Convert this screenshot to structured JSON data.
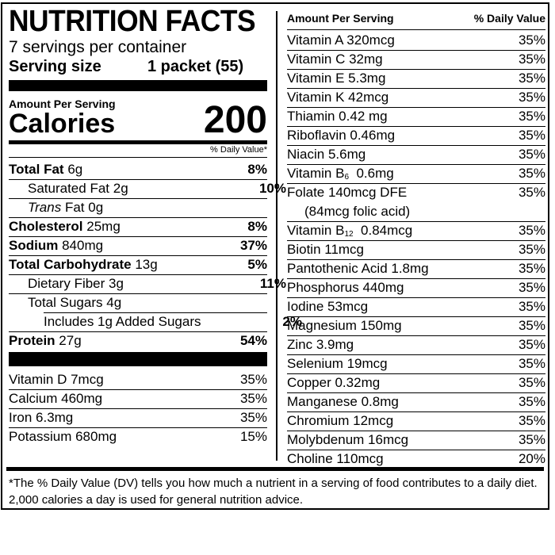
{
  "header": {
    "title": "NUTRITION FACTS",
    "servings": "7 servings per container",
    "serving_size_label": "Serving size",
    "serving_size_value": "1 packet (55)"
  },
  "calories": {
    "amount_per_serving": "Amount Per Serving",
    "label": "Calories",
    "value": "200",
    "dv_header": "% Daily Value*"
  },
  "nutrients": [
    {
      "name": "Total Fat",
      "amount": "6g",
      "pct": "8%"
    },
    {
      "name": "Saturated Fat",
      "amount": "2g",
      "pct": "10%"
    },
    {
      "name_italic": "Trans",
      "name": "Fat",
      "amount": "0g",
      "pct": ""
    },
    {
      "name": "Cholesterol",
      "amount": "25mg",
      "pct": "8%"
    },
    {
      "name": "Sodium",
      "amount": "840mg",
      "pct": "37%"
    },
    {
      "name": "Total Carbohydrate",
      "amount": "13g",
      "pct": "5%"
    },
    {
      "name": "Dietary Fiber",
      "amount": "3g",
      "pct": "11%"
    },
    {
      "name": "Total Sugars",
      "amount": "4g",
      "pct": ""
    },
    {
      "name": "Includes 1g Added Sugars",
      "amount": "",
      "pct": "2%"
    },
    {
      "name": "Protein",
      "amount": "27g",
      "pct": "54%"
    }
  ],
  "minerals_left": [
    {
      "label": "Vitamin D 7mcg",
      "pct": "35%"
    },
    {
      "label": "Calcium 460mg",
      "pct": "35%"
    },
    {
      "label": "Iron 6.3mg",
      "pct": "35%"
    },
    {
      "label": "Potassium 680mg",
      "pct": "15%"
    }
  ],
  "right_header": {
    "amount_per_serving": "Amount Per Serving",
    "dv": "% Daily Value"
  },
  "vitamins_right": [
    {
      "label": "Vitamin A  320mcg",
      "pct": "35%"
    },
    {
      "label": "Vitamin C  32mg",
      "pct": "35%"
    },
    {
      "label": "Vitamin E  5.3mg",
      "pct": "35%"
    },
    {
      "label": "Vitamin K  42mcg",
      "pct": "35%"
    },
    {
      "label": "Thiamin  0.42 mg",
      "pct": "35%"
    },
    {
      "label": "Riboflavin  0.46mg",
      "pct": "35%"
    },
    {
      "label": "Niacin  5.6mg",
      "pct": "35%"
    },
    {
      "label": "Vitamin B",
      "sub": "6",
      "rest": "  0.6mg",
      "pct": "35%"
    },
    {
      "label": "Folate  140mcg DFE",
      "line2": "(84mcg folic acid)",
      "pct": "35%"
    },
    {
      "label": "Vitamin B",
      "sub": "12",
      "rest": "  0.84mcg",
      "pct": "35%"
    },
    {
      "label": "Biotin  11mcg",
      "pct": "35%"
    },
    {
      "label": "Pantothenic Acid  1.8mg",
      "pct": "35%"
    },
    {
      "label": "Phosphorus  440mg",
      "pct": "35%"
    },
    {
      "label": "Iodine  53mcg",
      "pct": "35%"
    },
    {
      "label": "Magnesium  150mg",
      "pct": "35%"
    },
    {
      "label": "Zinc  3.9mg",
      "pct": "35%"
    },
    {
      "label": "Selenium  19mcg",
      "pct": "35%"
    },
    {
      "label": "Copper  0.32mg",
      "pct": "35%"
    },
    {
      "label": "Manganese  0.8mg",
      "pct": "35%"
    },
    {
      "label": "Chromium  12mcg",
      "pct": "35%"
    },
    {
      "label": "Molybdenum  16mcg",
      "pct": "35%"
    },
    {
      "label": "Choline  110mcg",
      "pct": "20%"
    }
  ],
  "footnote": "*The % Daily Value (DV) tells you how much a nutrient in a serving of food contributes to a daily diet. 2,000 calories a day is used for general nutrition advice."
}
